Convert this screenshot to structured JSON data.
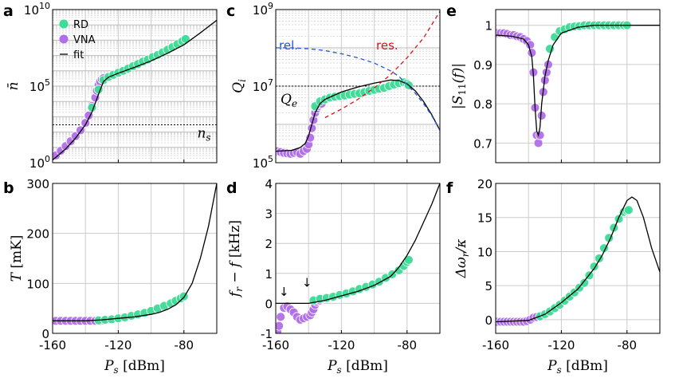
{
  "colors": {
    "rd": "#3ddc97",
    "vna": "#b06fe8",
    "fit": "#000000",
    "rel": "#2255dd",
    "res": "#dd1111",
    "grid": "#cccccc"
  },
  "legend": {
    "rd": "RD",
    "vna": "VNA",
    "fit": "fit"
  },
  "chart_data": [
    {
      "panel": "a",
      "type": "scatter",
      "xlabel": "P_s [dBm]",
      "ylabel": "n̄",
      "yscale": "log",
      "xlim": [
        -160,
        -60
      ],
      "ylim": [
        1,
        10000000000
      ],
      "ytick_labels": [
        "10^0",
        "10^5",
        "10^10"
      ],
      "annotations": {
        "ns": "n_s",
        "ns_level": 300
      },
      "series": [
        {
          "name": "VNA",
          "x": [
            -158,
            -155,
            -152,
            -149,
            -146,
            -143,
            -140,
            -138,
            -136,
            -134,
            -133,
            -132,
            -131,
            -130,
            -129
          ],
          "y": [
            3,
            6,
            12,
            25,
            55,
            130,
            400,
            1200,
            5000,
            18000,
            50000,
            120000,
            200000,
            280000,
            330000
          ]
        },
        {
          "name": "RD",
          "x": [
            -136,
            -132,
            -129,
            -126,
            -123,
            -120,
            -117,
            -114,
            -111,
            -108,
            -105,
            -102,
            -99,
            -96,
            -93,
            -90,
            -87,
            -84,
            -81,
            -79
          ],
          "y": [
            4000,
            60000,
            250000,
            400000,
            550000,
            750000,
            1000000,
            1400000,
            2000000,
            2800000,
            4000000,
            5500000,
            8000000,
            11000000,
            16000000,
            24000000,
            35000000,
            55000000,
            85000000,
            120000000
          ]
        },
        {
          "name": "fit",
          "x": [
            -160,
            -152,
            -146,
            -140,
            -136,
            -132,
            -129,
            -126,
            -120,
            -110,
            -100,
            -90,
            -80,
            -70,
            -60
          ],
          "y": [
            1.5,
            8,
            40,
            300,
            2000,
            30000,
            200000,
            380000,
            700000,
            1700000,
            4500000,
            14000000,
            50000000,
            300000000,
            2000000000
          ]
        }
      ]
    },
    {
      "panel": "b",
      "type": "scatter",
      "xlabel": "P_s [dBm]",
      "ylabel": "T [mK]",
      "xlim": [
        -160,
        -60
      ],
      "ylim": [
        0,
        300
      ],
      "yticks": [
        0,
        100,
        200,
        300
      ],
      "xticks": [
        -160,
        -120,
        -80
      ],
      "series": [
        {
          "name": "VNA",
          "x": [
            -158,
            -155,
            -152,
            -149,
            -146,
            -143,
            -140,
            -137,
            -134,
            -131,
            -129
          ],
          "y": [
            25,
            25,
            25,
            25,
            25,
            25,
            25,
            25,
            25,
            25,
            26
          ]
        },
        {
          "name": "RD",
          "x": [
            -132,
            -128,
            -124,
            -120,
            -116,
            -112,
            -108,
            -104,
            -100,
            -96,
            -92,
            -88,
            -85,
            -82,
            -80
          ],
          "y": [
            26,
            27,
            28,
            30,
            32,
            35,
            38,
            41,
            45,
            50,
            55,
            60,
            65,
            70,
            74
          ]
        },
        {
          "name": "fit",
          "x": [
            -160,
            -140,
            -130,
            -120,
            -110,
            -100,
            -95,
            -90,
            -85,
            -80,
            -75,
            -70,
            -65,
            -60
          ],
          "y": [
            25,
            25,
            27,
            30,
            33,
            38,
            42,
            48,
            57,
            72,
            100,
            150,
            215,
            300
          ]
        }
      ]
    },
    {
      "panel": "c",
      "type": "scatter",
      "xlabel": "P_s [dBm]",
      "ylabel": "Q_i",
      "yscale": "log",
      "xlim": [
        -160,
        -60
      ],
      "ylim": [
        100000,
        1000000000
      ],
      "ytick_labels": [
        "10^5",
        "10^7",
        "10^9"
      ],
      "annotations": {
        "rel": "rel.",
        "res": "res.",
        "qe": "Q_e",
        "qe_level": 10000000
      },
      "series": [
        {
          "name": "VNA",
          "x": [
            -159,
            -157,
            -155,
            -153,
            -151,
            -149,
            -147,
            -145,
            -143,
            -141,
            -140,
            -139,
            -138,
            -137,
            -136,
            -135,
            -134,
            -133,
            -132
          ],
          "y": [
            200000,
            190000,
            180000,
            175000,
            170000,
            180000,
            190000,
            170000,
            200000,
            230000,
            300000,
            450000,
            800000,
            1300000,
            2000000,
            2600000,
            3000000,
            3300000,
            3500000
          ]
        },
        {
          "name": "RD",
          "x": [
            -136,
            -133,
            -130,
            -127,
            -124,
            -121,
            -118,
            -115,
            -112,
            -109,
            -106,
            -103,
            -100,
            -97,
            -94,
            -91,
            -88,
            -85,
            -82,
            -80,
            -79
          ],
          "y": [
            3000000,
            4000000,
            4500000,
            5000000,
            5300000,
            5500000,
            5700000,
            6000000,
            6300000,
            6500000,
            7000000,
            7500000,
            8000000,
            8500000,
            9000000,
            10000000,
            11000000,
            12000000,
            12500000,
            11500000,
            10500000
          ]
        },
        {
          "name": "fit",
          "x": [
            -160,
            -150,
            -145,
            -142,
            -140,
            -138,
            -136,
            -133,
            -130,
            -120,
            -110,
            -100,
            -90,
            -85,
            -80,
            -75,
            -70,
            -65,
            -60
          ],
          "y": [
            200000,
            210000,
            250000,
            320000,
            500000,
            1000000,
            2000000,
            3500000,
            4500000,
            7000000,
            9500000,
            12000000,
            14500000,
            14000000,
            11500000,
            7500000,
            4000000,
            1800000,
            700000
          ]
        },
        {
          "name": "rel.",
          "x": [
            -160,
            -150,
            -140,
            -130,
            -120,
            -110,
            -100,
            -90,
            -85,
            -80,
            -75,
            -70,
            -65,
            -60
          ],
          "y": [
            100000000,
            100000000,
            95000000,
            85000000,
            70000000,
            55000000,
            40000000,
            25000000,
            18000000,
            11000000,
            6500000,
            3500000,
            1700000,
            700000
          ]
        },
        {
          "name": "res.",
          "x": [
            -130,
            -120,
            -110,
            -100,
            -90,
            -80,
            -75,
            -70,
            -65,
            -60
          ],
          "y": [
            1500000,
            2500000,
            4500000,
            9000000,
            20000000,
            55000000,
            100000000,
            180000000,
            400000000,
            900000000
          ]
        }
      ]
    },
    {
      "panel": "d",
      "type": "scatter",
      "xlabel": "P_s [dBm]",
      "ylabel": "f_r − f [kHz]",
      "xlim": [
        -160,
        -60
      ],
      "ylim": [
        -1,
        4
      ],
      "yticks": [
        -1,
        0,
        1,
        2,
        3,
        4
      ],
      "xticks": [
        -160,
        -120,
        -80
      ],
      "annotations": {
        "arrow1": "↓",
        "arrow2": "↓",
        "arrow1_x": -155,
        "arrow2_x": -141
      },
      "series": [
        {
          "name": "VNA",
          "x": [
            -159,
            -158,
            -157,
            -155,
            -153,
            -151,
            -149,
            -147,
            -145,
            -143,
            -141,
            -139,
            -138,
            -137,
            -136,
            -135,
            -134,
            -133,
            -132
          ],
          "y": [
            -0.95,
            -0.75,
            -0.45,
            -0.15,
            -0.1,
            -0.2,
            -0.3,
            -0.45,
            -0.55,
            -0.5,
            -0.45,
            -0.4,
            -0.3,
            -0.2,
            -0.05,
            0.05,
            0.1,
            0.1,
            0.15
          ]
        },
        {
          "name": "RD",
          "x": [
            -137,
            -133,
            -129,
            -125,
            -121,
            -117,
            -113,
            -109,
            -105,
            -101,
            -97,
            -93,
            -89,
            -85,
            -82,
            -80,
            -79
          ],
          "y": [
            0.1,
            0.15,
            0.18,
            0.22,
            0.28,
            0.33,
            0.4,
            0.48,
            0.55,
            0.63,
            0.72,
            0.85,
            0.97,
            1.1,
            1.25,
            1.38,
            1.45
          ]
        },
        {
          "name": "fit",
          "x": [
            -160,
            -140,
            -130,
            -120,
            -110,
            -100,
            -90,
            -85,
            -80,
            -75,
            -70,
            -65,
            -60
          ],
          "y": [
            0,
            0,
            0.1,
            0.25,
            0.4,
            0.6,
            0.9,
            1.2,
            1.6,
            2.1,
            2.7,
            3.3,
            4.0
          ]
        }
      ]
    },
    {
      "panel": "e",
      "type": "scatter",
      "xlabel": "P_s [dBm]",
      "ylabel": "|S_11(f)|",
      "xlim": [
        -160,
        -60
      ],
      "ylim": [
        0.65,
        1.04
      ],
      "yticks": [
        0.7,
        0.8,
        0.9,
        1
      ],
      "xticks": [
        -160,
        -120,
        -80
      ],
      "series": [
        {
          "name": "VNA",
          "x": [
            -159,
            -157,
            -155,
            -153,
            -151,
            -149,
            -147,
            -145,
            -143,
            -141,
            -139,
            -138,
            -137,
            -136,
            -135,
            -134,
            -133,
            -132,
            -131,
            -130,
            -129,
            -128
          ],
          "y": [
            0.98,
            0.98,
            0.98,
            0.978,
            0.975,
            0.975,
            0.972,
            0.97,
            0.965,
            0.96,
            0.95,
            0.93,
            0.88,
            0.79,
            0.72,
            0.7,
            0.72,
            0.77,
            0.83,
            0.86,
            0.88,
            0.9
          ]
        },
        {
          "name": "RD",
          "x": [
            -127,
            -124,
            -121,
            -118,
            -115,
            -112,
            -109,
            -106,
            -103,
            -100,
            -97,
            -94,
            -91,
            -88,
            -85,
            -82,
            -80
          ],
          "y": [
            0.94,
            0.97,
            0.985,
            0.99,
            0.995,
            0.997,
            0.998,
            1.0,
            1.0,
            1.0,
            1.0,
            1.0,
            1.0,
            1.0,
            1.0,
            1.0,
            1.0
          ]
        },
        {
          "name": "fit",
          "x": [
            -160,
            -150,
            -143,
            -140,
            -138,
            -137,
            -136,
            -135,
            -134,
            -133,
            -132,
            -130,
            -128,
            -125,
            -120,
            -110,
            -100,
            -90,
            -80,
            -70,
            -60
          ],
          "y": [
            0.975,
            0.972,
            0.965,
            0.95,
            0.92,
            0.87,
            0.79,
            0.73,
            0.72,
            0.74,
            0.8,
            0.87,
            0.91,
            0.95,
            0.98,
            0.995,
            1.0,
            1.0,
            1.0,
            1.0,
            1.0
          ]
        }
      ]
    },
    {
      "panel": "f",
      "type": "scatter",
      "xlabel": "P_s [dBm]",
      "ylabel": "Δω_r/κ",
      "xlim": [
        -160,
        -60
      ],
      "ylim": [
        -2,
        20
      ],
      "yticks": [
        0,
        5,
        10,
        15,
        20
      ],
      "xticks": [
        -160,
        -120,
        -80
      ],
      "series": [
        {
          "name": "VNA",
          "x": [
            -159,
            -157,
            -155,
            -153,
            -151,
            -149,
            -147,
            -145,
            -143,
            -141,
            -139,
            -137,
            -135,
            -133
          ],
          "y": [
            -0.3,
            -0.3,
            -0.3,
            -0.3,
            -0.3,
            -0.3,
            -0.3,
            -0.3,
            -0.3,
            -0.2,
            0.0,
            0.3,
            0.4,
            0.5
          ]
        },
        {
          "name": "RD",
          "x": [
            -133,
            -130,
            -127,
            -124,
            -121,
            -118,
            -115,
            -112,
            -109,
            -106,
            -103,
            -100,
            -97,
            -94,
            -91,
            -88,
            -85,
            -82,
            -80,
            -79
          ],
          "y": [
            0.5,
            0.8,
            1.2,
            1.7,
            2.2,
            2.8,
            3.4,
            4.0,
            4.7,
            5.4,
            6.5,
            7.8,
            9.0,
            10.5,
            12.0,
            13.5,
            14.8,
            15.8,
            16.0,
            16.1
          ]
        },
        {
          "name": "fit",
          "x": [
            -160,
            -140,
            -130,
            -120,
            -110,
            -100,
            -95,
            -90,
            -85,
            -80,
            -77,
            -74,
            -70,
            -65,
            -60
          ],
          "y": [
            -0.3,
            -0.1,
            0.8,
            2.5,
            4.5,
            7.5,
            9.5,
            12.0,
            15.0,
            17.5,
            18.0,
            17.5,
            15.0,
            10.5,
            7.0
          ]
        }
      ]
    }
  ]
}
